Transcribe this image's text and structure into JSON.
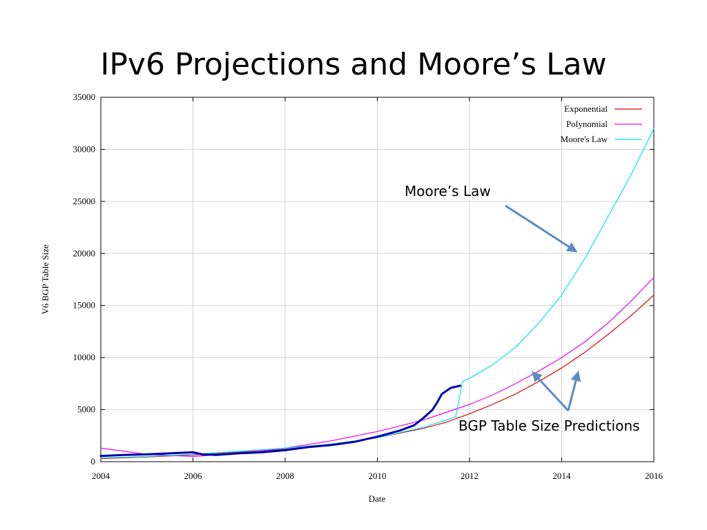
{
  "slide": {
    "title": "IPv6 Projections and Moore’s Law"
  },
  "annotations": {
    "moores_law_label": "Moore’s Law",
    "predictions_label": "BGP Table Size Predictions"
  },
  "colors": {
    "exponential": "#e00000",
    "polynomial": "#ee00ee",
    "moores_law": "#00e5ee",
    "observed": "#0000aa",
    "arrow": "#5b8ac4",
    "grid": "#d3d3d3"
  },
  "chart_data": {
    "type": "line",
    "xlabel": "Date",
    "ylabel": "V6 BGP Table Size",
    "xlim": [
      2004,
      2016
    ],
    "ylim": [
      0,
      35000
    ],
    "x_ticks": [
      "2004",
      "2006",
      "2008",
      "2010",
      "2012",
      "2014",
      "2016"
    ],
    "y_ticks": [
      "0",
      "5000",
      "10000",
      "15000",
      "20000",
      "25000",
      "30000",
      "35000"
    ],
    "grid": true,
    "legend_position": "top-right",
    "legend": [
      "Exponential",
      "Polynomial",
      "Moore's Law"
    ],
    "series": [
      {
        "name": "Exponential",
        "x": [
          2004,
          2005,
          2006,
          2007,
          2008,
          2009,
          2010,
          2011,
          2011.5,
          2012,
          2012.5,
          2013,
          2013.5,
          2014,
          2014.5,
          2015,
          2015.5,
          2016
        ],
        "y": [
          300,
          450,
          650,
          900,
          1200,
          1650,
          2300,
          3200,
          3800,
          4600,
          5500,
          6500,
          7700,
          9000,
          10500,
          12200,
          14000,
          16000
        ]
      },
      {
        "name": "Polynomial",
        "x": [
          2004,
          2005,
          2006,
          2007,
          2008,
          2009,
          2010,
          2011,
          2012,
          2012.5,
          2013,
          2013.5,
          2014,
          2014.5,
          2015,
          2015.5,
          2016
        ],
        "y": [
          1300,
          700,
          500,
          800,
          1300,
          2000,
          2900,
          4000,
          5500,
          6400,
          7500,
          8700,
          10000,
          11500,
          13300,
          15400,
          17700
        ]
      },
      {
        "name": "Moore's Law",
        "x": [
          2004,
          2005,
          2006,
          2007,
          2008,
          2009,
          2010,
          2011,
          2011.7,
          2011.85,
          2012,
          2012.5,
          2013,
          2013.5,
          2014,
          2014.5,
          2015,
          2015.5,
          2016
        ],
        "y": [
          350,
          500,
          700,
          1000,
          1300,
          1700,
          2300,
          3300,
          4300,
          7700,
          8000,
          9300,
          11000,
          13300,
          16000,
          19500,
          23500,
          27500,
          32000
        ]
      },
      {
        "name": "",
        "x": [
          2004,
          2004.5,
          2005,
          2005.5,
          2006,
          2006.2,
          2006.5,
          2007,
          2007.5,
          2008,
          2008.5,
          2009,
          2009.5,
          2010,
          2010.5,
          2010.8,
          2011,
          2011.2,
          2011.3,
          2011.4,
          2011.6,
          2011.8
        ],
        "y": [
          550,
          650,
          700,
          800,
          900,
          700,
          650,
          800,
          900,
          1100,
          1400,
          1600,
          1900,
          2400,
          3000,
          3500,
          4200,
          5000,
          5700,
          6500,
          7100,
          7300
        ]
      }
    ]
  }
}
